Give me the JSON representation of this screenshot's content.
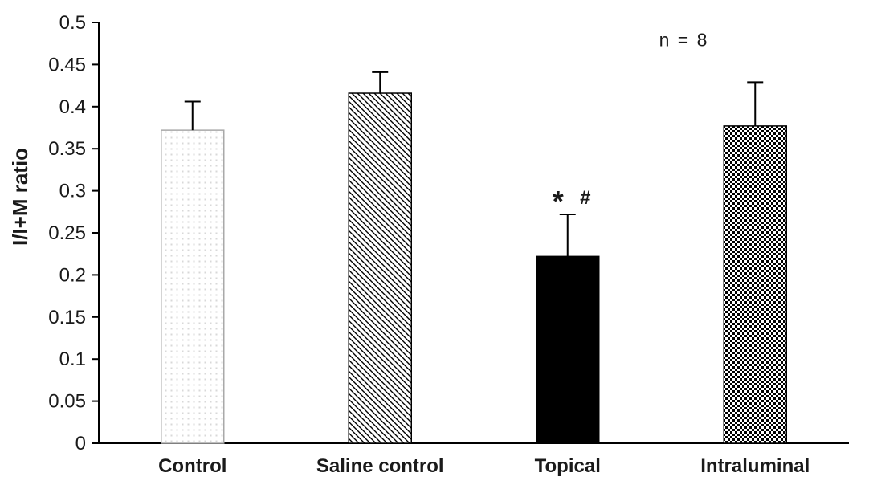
{
  "chart_data": {
    "type": "bar",
    "title": "",
    "xlabel": "",
    "ylabel": "I/I+M ratio",
    "categories": [
      "Control",
      "Saline control",
      "Topical",
      "Intraluminal"
    ],
    "values": [
      0.372,
      0.416,
      0.222,
      0.377
    ],
    "error_upper": [
      0.034,
      0.025,
      0.05,
      0.052
    ],
    "ylim": [
      0,
      0.5
    ],
    "ytick_labels": [
      "0",
      "0.05",
      "0.1",
      "0.15",
      "0.2",
      "0.25",
      "0.3",
      "0.35",
      "0.4",
      "0.45",
      "0.5"
    ],
    "ytick_values": [
      0,
      0.05,
      0.1,
      0.15,
      0.2,
      0.25,
      0.3,
      0.35,
      0.4,
      0.45,
      0.5
    ],
    "grid": false,
    "legend": false,
    "bar_styles": [
      {
        "name": "dot-grid",
        "stroke": "#a9a9a9"
      },
      {
        "name": "diagonal",
        "stroke": "#000000"
      },
      {
        "name": "solid",
        "stroke": "#000000"
      },
      {
        "name": "checker",
        "stroke": "#000000"
      }
    ],
    "annotations": {
      "note": "n = 8",
      "significance": {
        "category": "Topical",
        "symbols": [
          "*",
          "#"
        ]
      }
    },
    "colors": {
      "axis": "#000000",
      "bar_solid": "#000000",
      "text": "#1a1a1a",
      "dot_fill": "#d8d8d8",
      "pattern_bg": "#ffffff"
    }
  }
}
